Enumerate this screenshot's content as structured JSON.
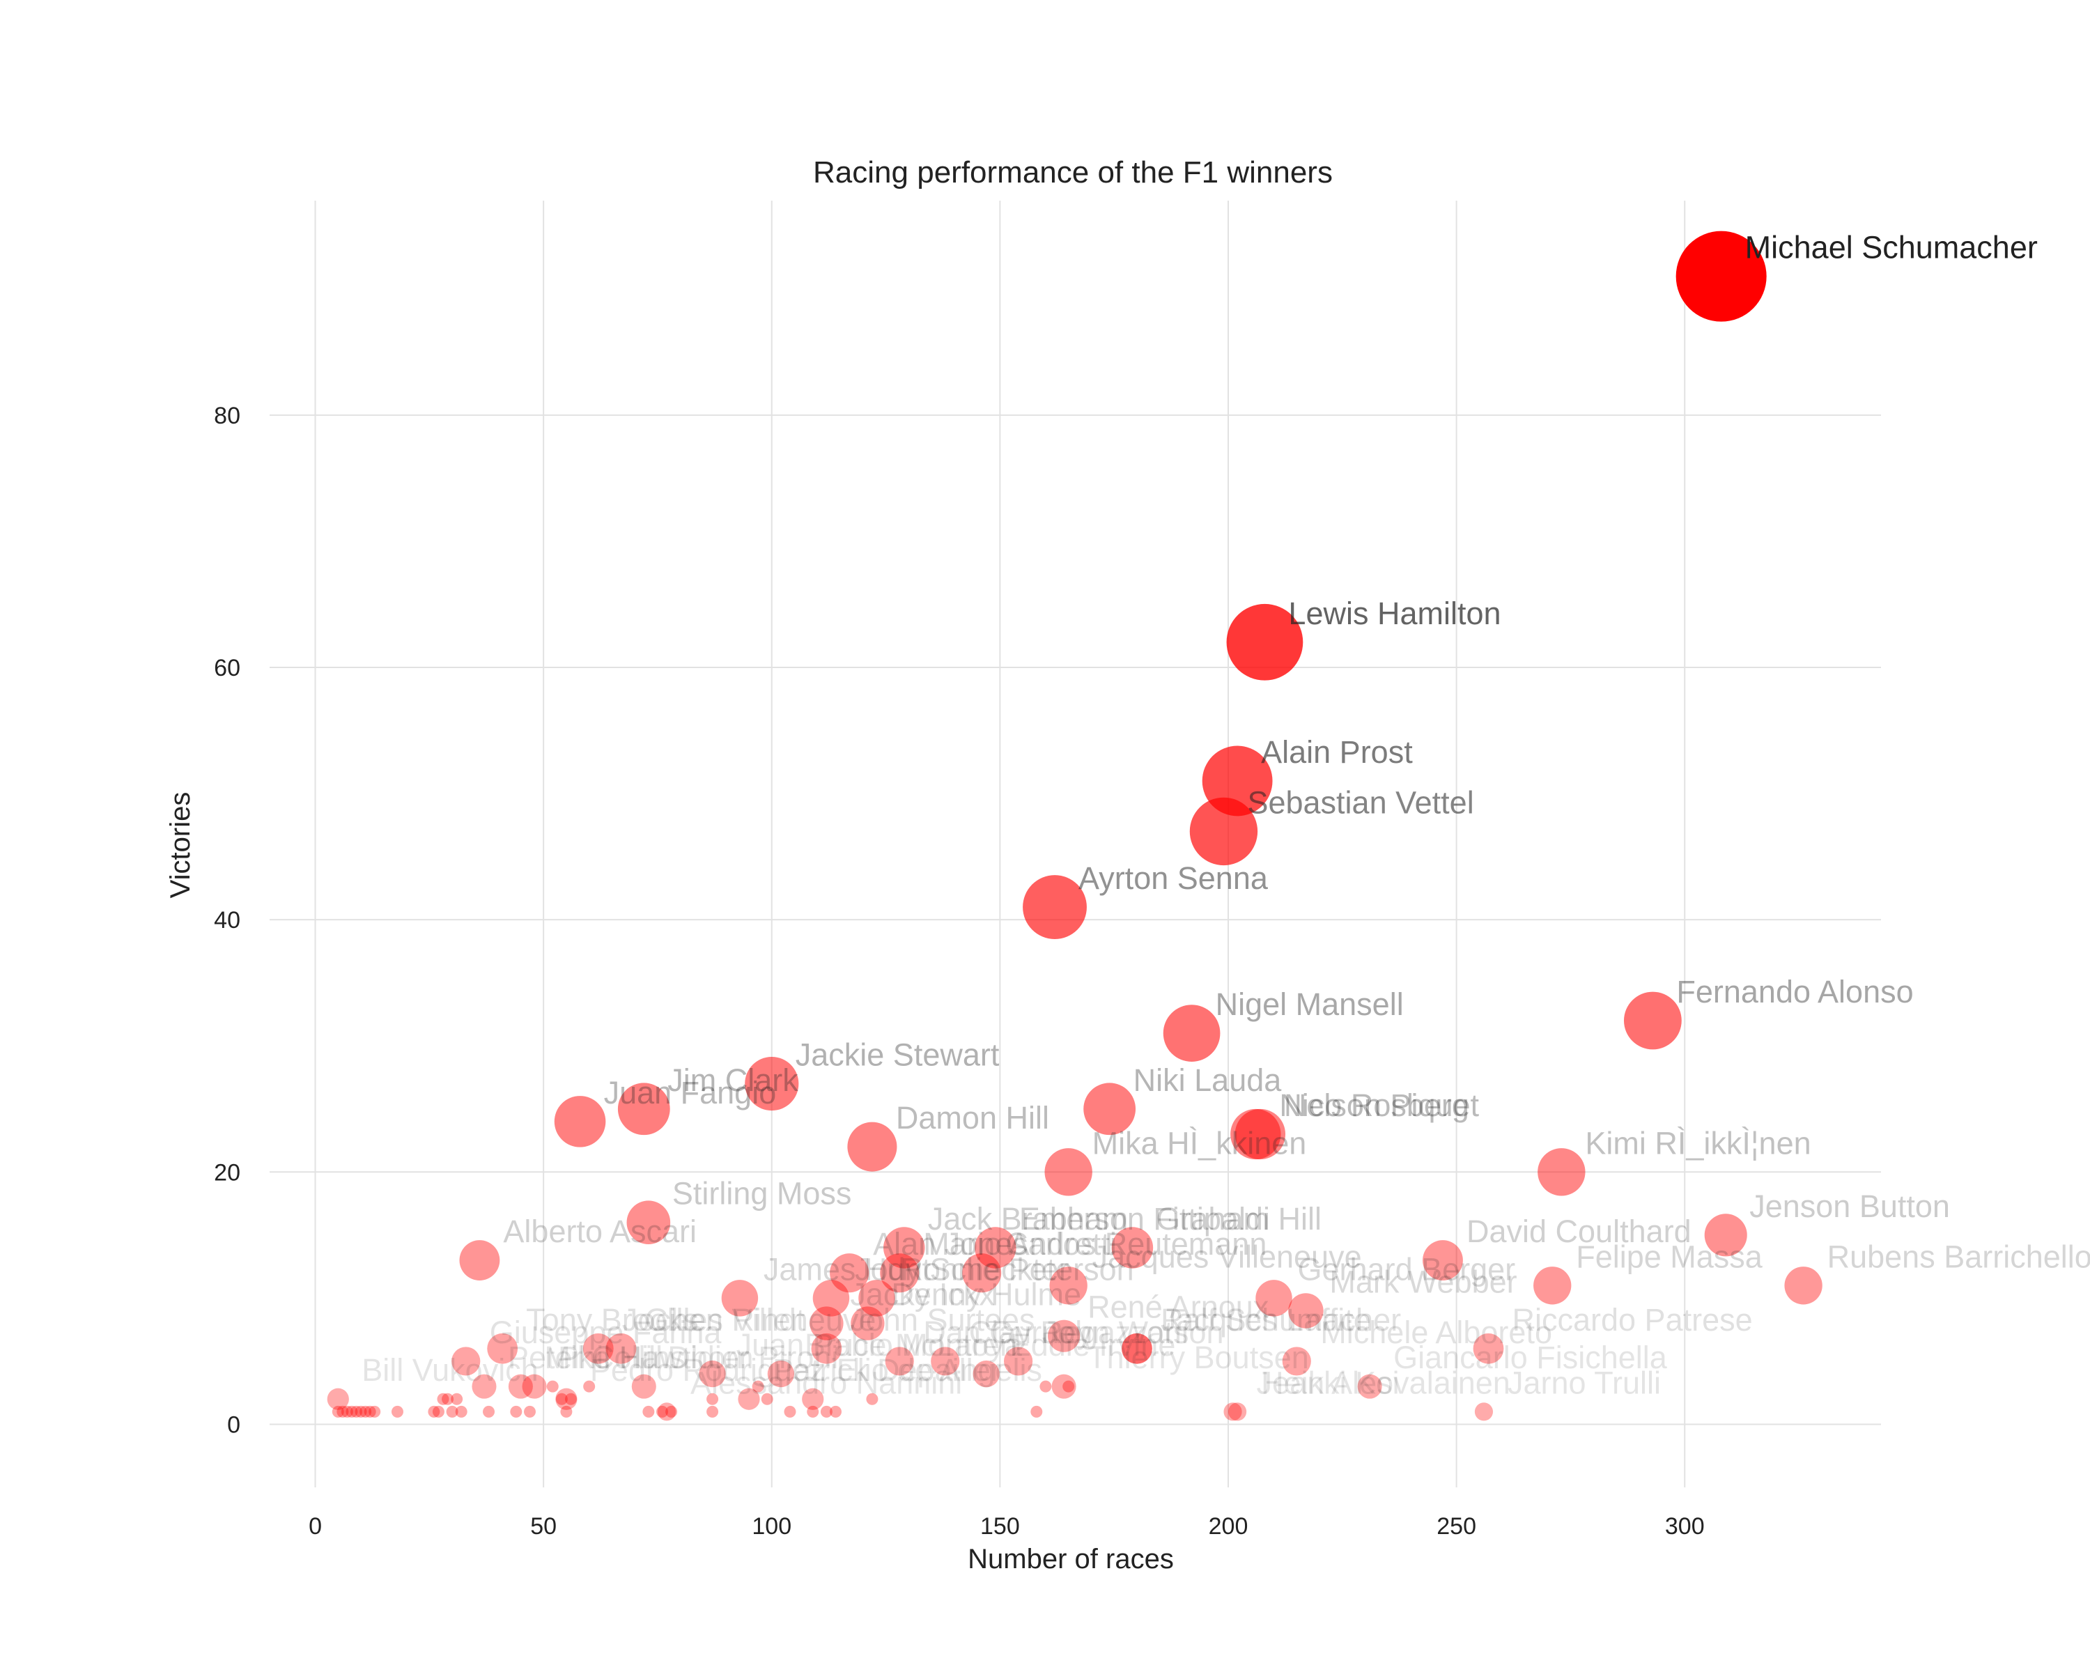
{
  "chart_data": {
    "type": "scatter",
    "title": "Racing performance of the F1 winners",
    "xlabel": "Number of races",
    "ylabel": "Victories",
    "xlim": [
      -10,
      343
    ],
    "ylim": [
      -5,
      97
    ],
    "xticks": [
      0,
      50,
      100,
      150,
      200,
      250,
      300
    ],
    "yticks": [
      0,
      20,
      40,
      60,
      80
    ],
    "grid": true,
    "marker_color": "#ff0000",
    "label_color": "#222222",
    "points": [
      {
        "label": "Michael Schumacher",
        "x": 308,
        "y": 91
      },
      {
        "label": "Lewis Hamilton",
        "x": 208,
        "y": 62
      },
      {
        "label": "Alain Prost",
        "x": 202,
        "y": 51
      },
      {
        "label": "Sebastian Vettel",
        "x": 199,
        "y": 47
      },
      {
        "label": "Ayrton Senna",
        "x": 162,
        "y": 41
      },
      {
        "label": "Fernando Alonso",
        "x": 293,
        "y": 32
      },
      {
        "label": "Nigel Mansell",
        "x": 192,
        "y": 31
      },
      {
        "label": "Jackie Stewart",
        "x": 100,
        "y": 27
      },
      {
        "label": "Jim Clark",
        "x": 72,
        "y": 25
      },
      {
        "label": "Niki Lauda",
        "x": 174,
        "y": 25
      },
      {
        "label": "Juan Fangio",
        "x": 58,
        "y": 24
      },
      {
        "label": "Nelson Piquet",
        "x": 207,
        "y": 23
      },
      {
        "label": "Nico Rosberg",
        "x": 206,
        "y": 23
      },
      {
        "label": "Damon Hill",
        "x": 122,
        "y": 22
      },
      {
        "label": "Mika HÌ_kkinen",
        "x": 165,
        "y": 20
      },
      {
        "label": "Kimi RÌ_ikkÌ¦nen",
        "x": 273,
        "y": 20
      },
      {
        "label": "Stirling Moss",
        "x": 73,
        "y": 16
      },
      {
        "label": "Jenson Button",
        "x": 309,
        "y": 15
      },
      {
        "label": "Jack Brabham",
        "x": 129,
        "y": 14
      },
      {
        "label": "Emerson Fittipaldi",
        "x": 149,
        "y": 14
      },
      {
        "label": "Graham Hill",
        "x": 179,
        "y": 14
      },
      {
        "label": "Alberto Ascari",
        "x": 36,
        "y": 13
      },
      {
        "label": "David Coulthard",
        "x": 247,
        "y": 13
      },
      {
        "label": "Mario Andretti",
        "x": 128,
        "y": 12
      },
      {
        "label": "Alan Jones",
        "x": 117,
        "y": 12
      },
      {
        "label": "Carlos Reutemann",
        "x": 146,
        "y": 12
      },
      {
        "label": "Jacques Villeneuve",
        "x": 165,
        "y": 11
      },
      {
        "label": "Felipe Massa",
        "x": 271,
        "y": 11
      },
      {
        "label": "Rubens Barrichello",
        "x": 326,
        "y": 11
      },
      {
        "label": "James Hunt",
        "x": 93,
        "y": 10
      },
      {
        "label": "Ronnie Peterson",
        "x": 123,
        "y": 10
      },
      {
        "label": "Jody Scheckter",
        "x": 113,
        "y": 10
      },
      {
        "label": "Gerhard Berger",
        "x": 210,
        "y": 10
      },
      {
        "label": "Mark Webber",
        "x": 217,
        "y": 9
      },
      {
        "label": "Jacky Ickx",
        "x": 112,
        "y": 8
      },
      {
        "label": "Denny Hulme",
        "x": 121,
        "y": 8
      },
      {
        "label": "René Arnoux",
        "x": 164,
        "y": 7
      },
      {
        "label": "Gilles Villeneuve",
        "x": 67,
        "y": 6
      },
      {
        "label": "Tony Brooks",
        "x": 41,
        "y": 6
      },
      {
        "label": "John Surtees",
        "x": 112,
        "y": 6
      },
      {
        "label": "Jacques Laffite",
        "x": 180,
        "y": 6
      },
      {
        "label": "Ralf Schumacher",
        "x": 180,
        "y": 6
      },
      {
        "label": "Riccardo Patrese",
        "x": 257,
        "y": 6
      },
      {
        "label": "Jochen Rindt",
        "x": 62,
        "y": 6
      },
      {
        "label": "Michele Alboreto",
        "x": 215,
        "y": 5
      },
      {
        "label": "Dan Gurney",
        "x": 128,
        "y": 5
      },
      {
        "label": "Clay Regazzoni",
        "x": 138,
        "y": 5
      },
      {
        "label": "John Watson",
        "x": 154,
        "y": 5
      },
      {
        "label": "Giancarlo Fisichella",
        "x": 231,
        "y": 3
      },
      {
        "label": "Jarno Trulli",
        "x": 256,
        "y": 1
      },
      {
        "label": "Heikki Kovalainen",
        "x": 202,
        "y": 1
      },
      {
        "label": "Bill Vukovich",
        "x": 5,
        "y": 2
      },
      {
        "label": "Peter Collins",
        "x": 37,
        "y": 3
      },
      {
        "label": "Phil Hill",
        "x": 48,
        "y": 3
      },
      {
        "label": "Bruce McLaren",
        "x": 102,
        "y": 4
      },
      {
        "label": "Patrick Depailler",
        "x": 95,
        "y": 2
      },
      {
        "label": "Didier Pironi",
        "x": 72,
        "y": 3
      },
      {
        "label": "Thierry Boutsen",
        "x": 164,
        "y": 3
      },
      {
        "label": "Eddie Irvine",
        "x": 147,
        "y": 4
      },
      {
        "label": "Juan Pablo Montoya",
        "x": 87,
        "y": 4
      },
      {
        "label": "Elio de Angelis",
        "x": 109,
        "y": 2
      },
      {
        "label": "Alessandro Nannini",
        "x": 77,
        "y": 1
      },
      {
        "label": "Mike Hawthorn",
        "x": 45,
        "y": 3
      },
      {
        "label": "Giuseppe Farina",
        "x": 33,
        "y": 5
      },
      {
        "label": "Jean Alesi",
        "x": 201,
        "y": 1
      },
      {
        "label": "Pedro Rodriguez",
        "x": 55,
        "y": 2
      }
    ],
    "small_points": [
      [
        5,
        1
      ],
      [
        6,
        1
      ],
      [
        7,
        1
      ],
      [
        8,
        1
      ],
      [
        9,
        1
      ],
      [
        10,
        1
      ],
      [
        11,
        1
      ],
      [
        12,
        1
      ],
      [
        13,
        1
      ],
      [
        18,
        1
      ],
      [
        26,
        1
      ],
      [
        27,
        1
      ],
      [
        28,
        2
      ],
      [
        29,
        2
      ],
      [
        30,
        1
      ],
      [
        31,
        2
      ],
      [
        32,
        1
      ],
      [
        38,
        1
      ],
      [
        44,
        1
      ],
      [
        47,
        1
      ],
      [
        52,
        3
      ],
      [
        54,
        2
      ],
      [
        55,
        1
      ],
      [
        56,
        2
      ],
      [
        60,
        3
      ],
      [
        73,
        1
      ],
      [
        76,
        1
      ],
      [
        78,
        1
      ],
      [
        87,
        1
      ],
      [
        87,
        2
      ],
      [
        97,
        3
      ],
      [
        99,
        2
      ],
      [
        104,
        1
      ],
      [
        109,
        1
      ],
      [
        112,
        1
      ],
      [
        114,
        1
      ],
      [
        122,
        2
      ],
      [
        158,
        1
      ],
      [
        160,
        3
      ],
      [
        165,
        3
      ]
    ]
  }
}
